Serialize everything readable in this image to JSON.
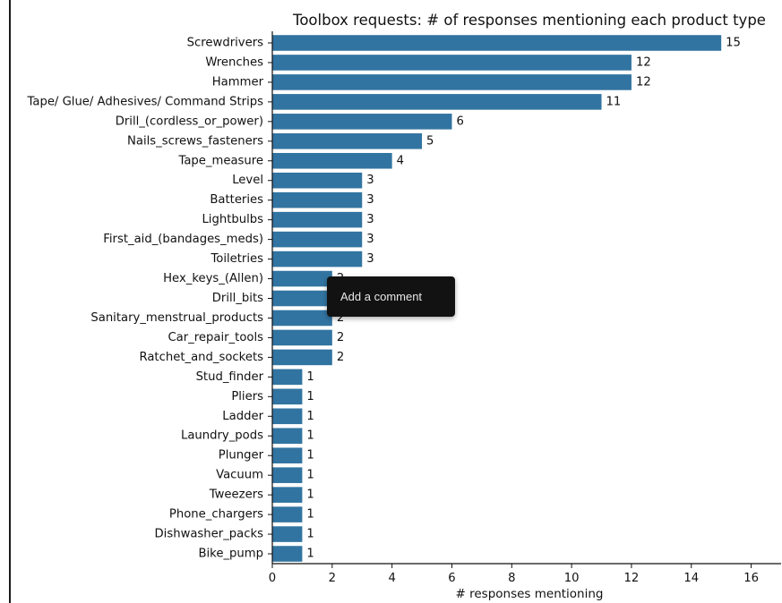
{
  "chart_data": {
    "type": "bar",
    "orientation": "horizontal",
    "title": "Toolbox requests: # of responses mentioning each product type",
    "xlabel": "# responses mentioning",
    "ylabel": "",
    "xlim": [
      0,
      17
    ],
    "xticks": [
      0,
      2,
      4,
      6,
      8,
      10,
      12,
      14,
      16
    ],
    "grid": false,
    "bar_color": "#3274a1",
    "data_labels": true,
    "categories": [
      "Screwdrivers",
      "Wrenches",
      "Hammer",
      "Tape/ Glue/ Adhesives/ Command Strips",
      "Drill_(cordless_or_power)",
      "Nails_screws_fasteners",
      "Tape_measure",
      "Level",
      "Batteries",
      "Lightbulbs",
      "First_aid_(bandages_meds)",
      "Toiletries",
      "Hex_keys_(Allen)",
      "Drill_bits",
      "Sanitary_menstrual_products",
      "Car_repair_tools",
      "Ratchet_and_sockets",
      "Stud_finder",
      "Pliers",
      "Ladder",
      "Laundry_pods",
      "Plunger",
      "Vacuum",
      "Tweezers",
      "Phone_chargers",
      "Dishwasher_packs",
      "Bike_pump"
    ],
    "values": [
      15,
      12,
      12,
      11,
      6,
      5,
      4,
      3,
      3,
      3,
      3,
      3,
      2,
      2,
      2,
      2,
      2,
      1,
      1,
      1,
      1,
      1,
      1,
      1,
      1,
      1,
      1
    ]
  },
  "tooltip": {
    "text": "Add a comment"
  }
}
